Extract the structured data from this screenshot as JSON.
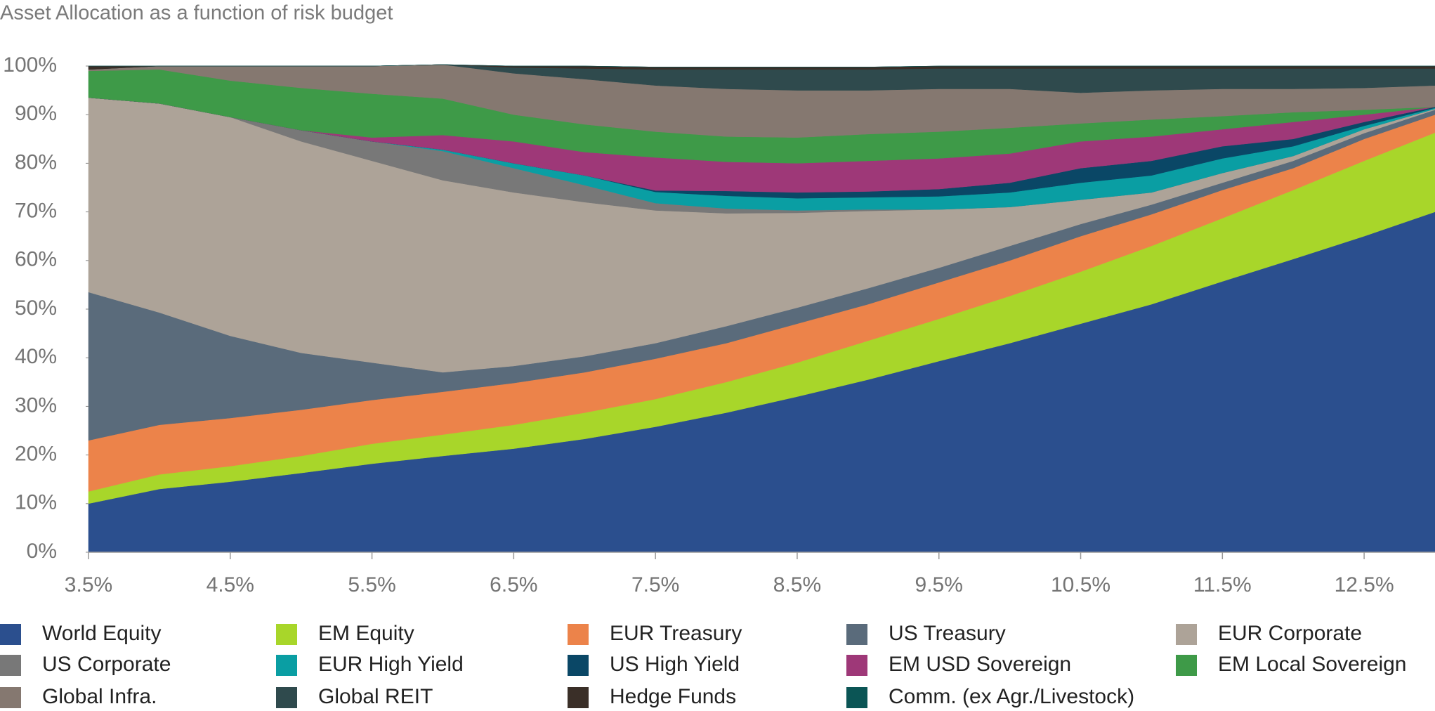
{
  "chart_data": {
    "type": "stacked_area",
    "title": "Asset Allocation as a function of risk budget",
    "x": [
      3.5,
      4,
      4.5,
      5,
      5.5,
      6,
      6.5,
      7,
      7.5,
      8,
      8.5,
      9,
      9.5,
      10,
      10.5,
      11,
      11.5,
      12,
      12.5,
      13
    ],
    "xlim": [
      3.5,
      13
    ],
    "xticks": [
      {
        "value": 3.5,
        "label": "3.5%"
      },
      {
        "value": 4.5,
        "label": "4.5%"
      },
      {
        "value": 5.5,
        "label": "5.5%"
      },
      {
        "value": 6.5,
        "label": "6.5%"
      },
      {
        "value": 7.5,
        "label": "7.5%"
      },
      {
        "value": 8.5,
        "label": "8.5%"
      },
      {
        "value": 9.5,
        "label": "9.5%"
      },
      {
        "value": 10.5,
        "label": "10.5%"
      },
      {
        "value": 11.5,
        "label": "11.5%"
      },
      {
        "value": 12.5,
        "label": "12.5%"
      }
    ],
    "ylim": [
      0,
      100
    ],
    "yticks": [
      {
        "value": 0,
        "label": "0%"
      },
      {
        "value": 10,
        "label": "10%"
      },
      {
        "value": 20,
        "label": "20%"
      },
      {
        "value": 30,
        "label": "30%"
      },
      {
        "value": 40,
        "label": "40%"
      },
      {
        "value": 50,
        "label": "50%"
      },
      {
        "value": 60,
        "label": "60%"
      },
      {
        "value": 70,
        "label": "70%"
      },
      {
        "value": 80,
        "label": "80%"
      },
      {
        "value": 90,
        "label": "90%"
      },
      {
        "value": 100,
        "label": "100%"
      }
    ],
    "legend": "bottom",
    "series": [
      {
        "name": "World Equity",
        "color": "#2b4f8e",
        "values": [
          10,
          13,
          14.5,
          16.3,
          18.2,
          19.8,
          21.3,
          23.3,
          25.8,
          28.7,
          32,
          35.5,
          39.3,
          43,
          47,
          51,
          55.7,
          60.3,
          65,
          70
        ]
      },
      {
        "name": "EM Equity",
        "color": "#a8d62a",
        "values": [
          2.5,
          3,
          3.2,
          3.5,
          4.1,
          4.4,
          4.9,
          5.4,
          5.7,
          6.3,
          7,
          8,
          8.7,
          9.7,
          10.7,
          12,
          13,
          14.2,
          15.5,
          16.3
        ]
      },
      {
        "name": "EUR Treasury",
        "color": "#ec834a",
        "values": [
          10.5,
          10.2,
          9.9,
          9.5,
          9,
          8.8,
          8.6,
          8.3,
          8.3,
          8,
          8,
          7.5,
          7.5,
          7.3,
          7.3,
          6.5,
          5.8,
          4.5,
          4.5,
          3.7
        ]
      },
      {
        "name": "US Treasury",
        "color": "#5a6b7b",
        "values": [
          30.5,
          23.1,
          16.9,
          11.7,
          7.7,
          4,
          3.5,
          3.3,
          3.2,
          3.5,
          3.3,
          3.3,
          3,
          3,
          2.5,
          2,
          1.5,
          1.5,
          1.2,
          1
        ]
      },
      {
        "name": "EUR Corporate",
        "color": "#ada398",
        "values": [
          40,
          43,
          45,
          43.5,
          41.5,
          39.5,
          35.7,
          31.7,
          27.3,
          23.2,
          19.5,
          15.9,
          12,
          8,
          5,
          2.5,
          2,
          1,
          0.8,
          0.2
        ]
      },
      {
        "name": "US Corporate",
        "color": "#787878",
        "values": [
          0,
          0,
          0,
          2.3,
          4,
          6,
          5,
          3.5,
          1.5,
          1,
          0.5,
          0.3,
          0,
          0,
          0,
          0,
          0,
          0,
          0,
          0
        ]
      },
      {
        "name": "EUR High Yield",
        "color": "#0a9ea3",
        "values": [
          0,
          0,
          0,
          0,
          0,
          0.3,
          1,
          2,
          2.3,
          2.6,
          2.5,
          2.5,
          2.7,
          3,
          3.5,
          3.5,
          3,
          2,
          0.7,
          0.2
        ]
      },
      {
        "name": "US High Yield",
        "color": "#0a4766",
        "values": [
          0,
          0,
          0,
          0,
          0,
          0,
          0,
          0,
          0.3,
          1,
          1.2,
          1.2,
          1.5,
          2,
          3,
          3,
          2.5,
          1.5,
          0.8,
          0.2
        ]
      },
      {
        "name": "EM USD Sovereign",
        "color": "#9e3878",
        "values": [
          0,
          0,
          0,
          0,
          0.8,
          3,
          4.5,
          4.8,
          6.8,
          6,
          6,
          6.3,
          6.3,
          6,
          5.5,
          5,
          3.5,
          3.5,
          1.5,
          0
        ]
      },
      {
        "name": "EM Local Sovereign",
        "color": "#3e9a48",
        "values": [
          5.5,
          7,
          7.5,
          8.7,
          9,
          7.5,
          5.5,
          5.7,
          5.3,
          5.2,
          5.3,
          5.5,
          5.5,
          5.3,
          3.7,
          3.5,
          2.7,
          2,
          1,
          0
        ]
      },
      {
        "name": "Global Infra.",
        "color": "#857870",
        "values": [
          0.3,
          0.7,
          3,
          4.5,
          5.7,
          7,
          8.5,
          9.3,
          9.5,
          9.8,
          9.7,
          9,
          8.8,
          8,
          6.3,
          6,
          5.6,
          4.8,
          4.5,
          4.4
        ]
      },
      {
        "name": "Global REIT",
        "color": "#2f4a4d",
        "values": [
          0,
          0,
          0,
          0,
          0,
          0,
          1.2,
          2.2,
          3.3,
          4,
          4.3,
          4.3,
          4.2,
          4.2,
          5,
          4.5,
          4.2,
          4.2,
          4,
          3.5
        ]
      },
      {
        "name": "Hedge Funds",
        "color": "#3a2f28",
        "values": [
          0.7,
          0,
          0,
          0,
          0,
          0,
          0.3,
          0.5,
          0.5,
          0.5,
          0.5,
          0.5,
          0.5,
          0.5,
          0.5,
          0.5,
          0.5,
          0.5,
          0.5,
          0.5
        ]
      },
      {
        "name": "Comm. (ex Agr./Livestock)",
        "color": "#0b5555",
        "values": [
          0,
          0,
          0,
          0,
          0,
          0,
          0,
          0,
          0,
          0,
          0,
          0,
          0,
          0,
          0,
          0,
          0,
          0,
          0,
          0
        ]
      }
    ]
  }
}
